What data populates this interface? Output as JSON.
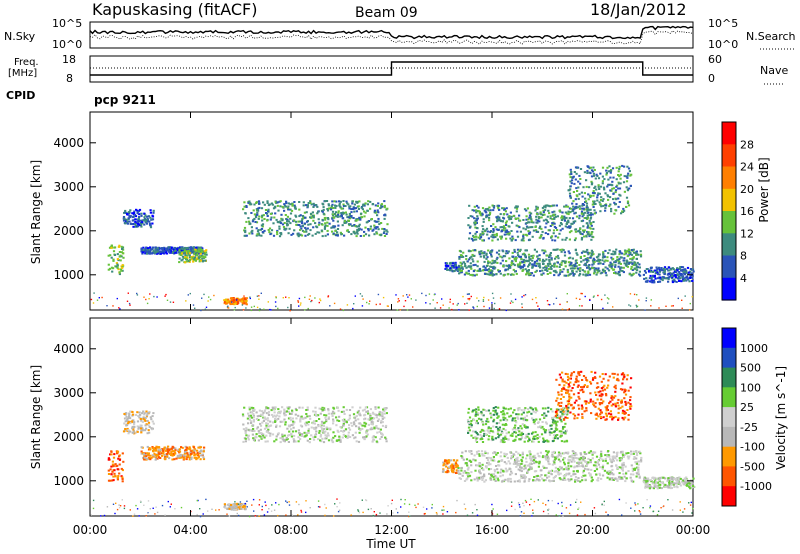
{
  "header": {
    "station": "Kapuskasing (fitACF)",
    "beam": "Beam 09",
    "date": "18/Jan/2012"
  },
  "noise_panel": {
    "left_label": "N.Sky",
    "left_ticks": [
      "10^5",
      "10^0"
    ],
    "right_label": "N.Search",
    "right_ticks": [
      "10^5",
      "10^0"
    ]
  },
  "freq_panel": {
    "left_label_1": "Freq.",
    "left_label_2": "[MHz]",
    "left_ticks": [
      "18",
      "8"
    ],
    "right_label": "Nave",
    "right_ticks": [
      "60",
      "0"
    ],
    "cpid_label": "CPID",
    "cpid_value": "pcp 9211"
  },
  "colors": {
    "power": [
      "#0000ff",
      "#2a54b8",
      "#3d8b7e",
      "#66c23a",
      "#f2c200",
      "#ff7f00",
      "#ff4000",
      "#ff0000"
    ],
    "velocity": [
      "#ff0000",
      "#ff5500",
      "#ff9900",
      "#b8b8b8",
      "#cfcfcf",
      "#66cc33",
      "#2e8b57",
      "#1f4fbf",
      "#0000ff"
    ]
  },
  "chart_data": [
    {
      "type": "heatmap",
      "name": "power",
      "ylabel": "Slant Range [km]",
      "yticks": [
        1000,
        2000,
        3000,
        4000
      ],
      "ylim": [
        200,
        4700
      ],
      "xlim": [
        0,
        24
      ],
      "colorbar_label": "Power [dB]",
      "colorbar_ticks": [
        "4",
        "8",
        "12",
        "16",
        "20",
        "24",
        "28"
      ],
      "echo_regions": [
        {
          "t0": 0.7,
          "t1": 1.3,
          "r0": 1000,
          "r1": 1700,
          "level": 3
        },
        {
          "t0": 1.3,
          "t1": 2.5,
          "r0": 2100,
          "r1": 2500,
          "level": 1
        },
        {
          "t0": 2.0,
          "t1": 4.5,
          "r0": 1500,
          "r1": 1650,
          "level": 1
        },
        {
          "t0": 3.5,
          "t1": 4.6,
          "r0": 1300,
          "r1": 1600,
          "level": 3
        },
        {
          "t0": 5.3,
          "t1": 6.2,
          "r0": 350,
          "r1": 500,
          "level": 5
        },
        {
          "t0": 6.0,
          "t1": 11.8,
          "r0": 1900,
          "r1": 2700,
          "level": 2
        },
        {
          "t0": 14.1,
          "t1": 14.6,
          "r0": 1100,
          "r1": 1300,
          "level": 1
        },
        {
          "t0": 14.6,
          "t1": 21.9,
          "r0": 1000,
          "r1": 1600,
          "level": 2
        },
        {
          "t0": 15.0,
          "t1": 20.0,
          "r0": 1800,
          "r1": 2600,
          "level": 2
        },
        {
          "t0": 19.0,
          "t1": 21.5,
          "r0": 2400,
          "r1": 3500,
          "level": 2
        },
        {
          "t0": 22.0,
          "t1": 24.0,
          "r0": 850,
          "r1": 1200,
          "level": 1
        }
      ]
    },
    {
      "type": "heatmap",
      "name": "velocity",
      "ylabel": "Slant Range [km]",
      "yticks": [
        1000,
        2000,
        3000,
        4000
      ],
      "ylim": [
        200,
        4700
      ],
      "xlim": [
        0,
        24
      ],
      "xlabel": "Time UT",
      "xticks": [
        "00:00",
        "04:00",
        "08:00",
        "12:00",
        "16:00",
        "20:00",
        "00:00"
      ],
      "colorbar_label": "Velocity [m s^-1]",
      "colorbar_ticks": [
        "1000",
        "500",
        "100",
        "25",
        "-25",
        "-100",
        "-500",
        "-1000"
      ],
      "echo_regions": [
        {
          "t0": 0.7,
          "t1": 1.3,
          "r0": 1000,
          "r1": 1700,
          "level": 1
        },
        {
          "t0": 1.3,
          "t1": 2.5,
          "r0": 2100,
          "r1": 2600,
          "level": 3
        },
        {
          "t0": 2.0,
          "t1": 4.5,
          "r0": 1500,
          "r1": 1800,
          "level": 2
        },
        {
          "t0": 5.3,
          "t1": 6.2,
          "r0": 350,
          "r1": 500,
          "level": 3
        },
        {
          "t0": 6.0,
          "t1": 11.8,
          "r0": 1900,
          "r1": 2700,
          "level": 4
        },
        {
          "t0": 14.0,
          "t1": 14.6,
          "r0": 1200,
          "r1": 1500,
          "level": 2
        },
        {
          "t0": 14.6,
          "t1": 21.9,
          "r0": 1000,
          "r1": 1700,
          "level": 4
        },
        {
          "t0": 15.0,
          "t1": 19.0,
          "r0": 1900,
          "r1": 2700,
          "level": 5
        },
        {
          "t0": 18.5,
          "t1": 21.5,
          "r0": 2400,
          "r1": 3500,
          "level": 1
        },
        {
          "t0": 22.0,
          "t1": 24.0,
          "r0": 850,
          "r1": 1100,
          "level": 4
        }
      ]
    }
  ]
}
